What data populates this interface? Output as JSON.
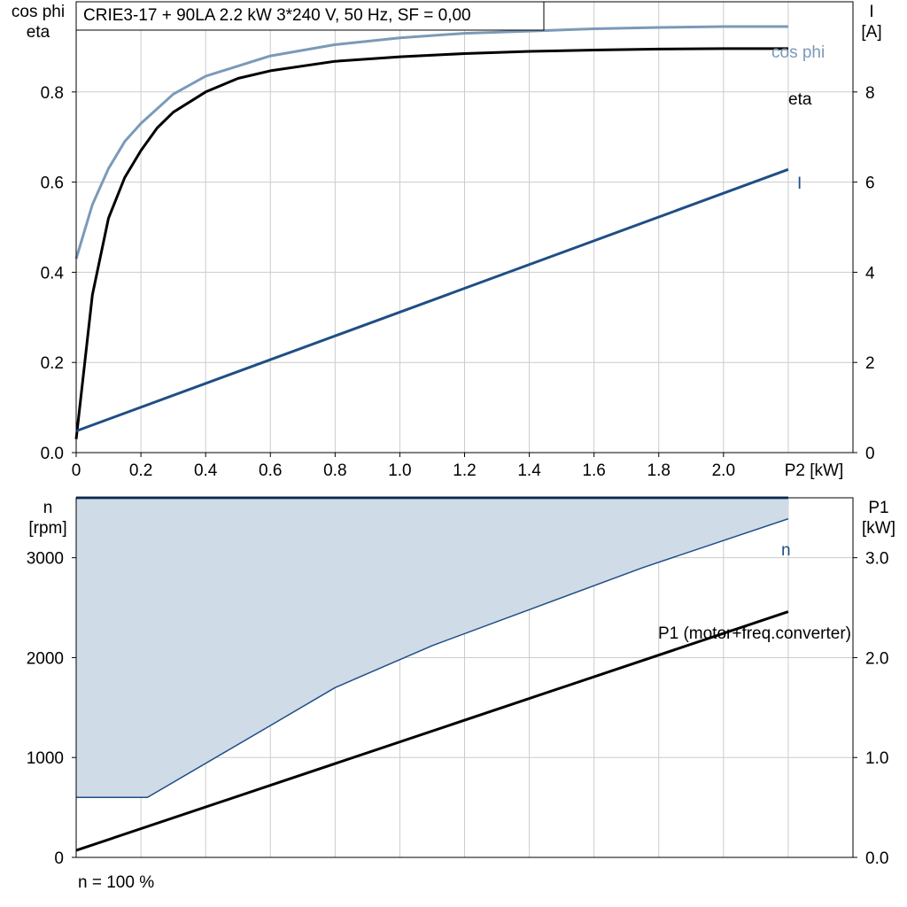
{
  "title": "CRIE3-17 + 90LA   2.2 kW   3*240 V, 50 Hz, SF = 0,00",
  "footer": "n = 100 %",
  "colors": {
    "cos_phi": "#7a9ab8",
    "eta": "#000000",
    "current": "#1f4e85",
    "speed": "#1f4e85",
    "speed_band": "#cfdbe7",
    "p1": "#000000",
    "grid": "#cccccc"
  },
  "chart_data": [
    {
      "type": "line",
      "x_axis": {
        "label": "P2 [kW]",
        "ticks": [
          "0",
          "0.2",
          "0.4",
          "0.6",
          "0.8",
          "1.0",
          "1.2",
          "1.4",
          "1.6",
          "1.8",
          "2.0"
        ],
        "range": [
          0,
          2.4
        ]
      },
      "y_left": {
        "label_line1": "cos phi",
        "label_line2": "eta",
        "ticks": [
          "0.0",
          "0.2",
          "0.4",
          "0.6",
          "0.8"
        ],
        "range": [
          0,
          1.0
        ]
      },
      "y_right": {
        "label_line1": "I",
        "label_line2": "[A]",
        "ticks": [
          "0",
          "2",
          "4",
          "6",
          "8"
        ],
        "range": [
          0,
          10
        ]
      },
      "grid": true,
      "series": [
        {
          "name": "cos phi",
          "axis": "left",
          "points": [
            [
              0,
              0.43
            ],
            [
              0.05,
              0.55
            ],
            [
              0.1,
              0.63
            ],
            [
              0.15,
              0.69
            ],
            [
              0.2,
              0.73
            ],
            [
              0.3,
              0.795
            ],
            [
              0.4,
              0.835
            ],
            [
              0.6,
              0.88
            ],
            [
              0.8,
              0.905
            ],
            [
              1.0,
              0.92
            ],
            [
              1.2,
              0.93
            ],
            [
              1.4,
              0.935
            ],
            [
              1.6,
              0.94
            ],
            [
              1.8,
              0.943
            ],
            [
              2.0,
              0.945
            ],
            [
              2.2,
              0.945
            ]
          ]
        },
        {
          "name": "eta",
          "axis": "left",
          "points": [
            [
              0,
              0.03
            ],
            [
              0.05,
              0.35
            ],
            [
              0.1,
              0.52
            ],
            [
              0.15,
              0.61
            ],
            [
              0.2,
              0.67
            ],
            [
              0.25,
              0.72
            ],
            [
              0.3,
              0.755
            ],
            [
              0.4,
              0.8
            ],
            [
              0.5,
              0.83
            ],
            [
              0.6,
              0.847
            ],
            [
              0.8,
              0.868
            ],
            [
              1.0,
              0.878
            ],
            [
              1.2,
              0.885
            ],
            [
              1.4,
              0.89
            ],
            [
              1.6,
              0.893
            ],
            [
              1.8,
              0.895
            ],
            [
              2.0,
              0.896
            ],
            [
              2.2,
              0.896
            ]
          ]
        },
        {
          "name": "I",
          "axis": "right",
          "points": [
            [
              0,
              0.48
            ],
            [
              2.2,
              6.28
            ]
          ]
        }
      ]
    },
    {
      "type": "area",
      "x_range": [
        0,
        2.4
      ],
      "y_left": {
        "label_line1": "n",
        "label_line2": "[rpm]",
        "ticks": [
          "0",
          "1000",
          "2000",
          "3000"
        ],
        "range": [
          0,
          3600
        ]
      },
      "y_right": {
        "label_line1": "P1",
        "label_line2": "[kW]",
        "ticks": [
          "0.0",
          "1.0",
          "2.0",
          "3.0"
        ],
        "range": [
          0,
          3.6
        ]
      },
      "grid": true,
      "series": [
        {
          "name": "n",
          "axis": "left",
          "role": "max",
          "points": [
            [
              0,
              3600
            ],
            [
              2.2,
              3600
            ]
          ]
        },
        {
          "name": "n",
          "axis": "left",
          "role": "min",
          "points": [
            [
              0,
              600
            ],
            [
              0.22,
              600
            ],
            [
              0.6,
              1320
            ],
            [
              0.8,
              1700
            ],
            [
              1.1,
              2120
            ],
            [
              1.4,
              2480
            ],
            [
              1.75,
              2900
            ],
            [
              2.2,
              3390
            ]
          ]
        },
        {
          "name": "P1 (motor+freq.converter)",
          "axis": "right",
          "points": [
            [
              0,
              0.07
            ],
            [
              2.2,
              2.46
            ]
          ]
        }
      ]
    }
  ]
}
